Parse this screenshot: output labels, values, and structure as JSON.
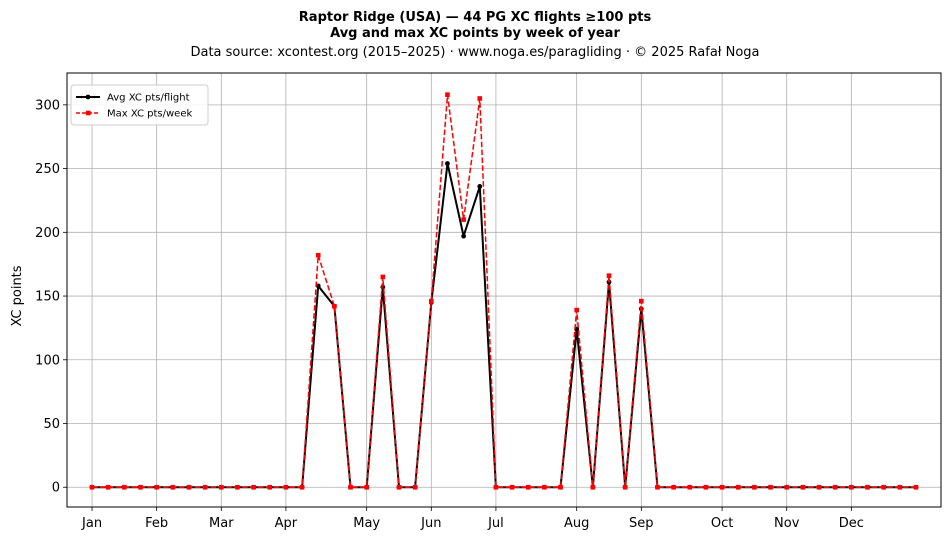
{
  "chart_data": {
    "type": "line",
    "title": "Raptor Ridge (USA)  —  44 PG XC flights ≥100 pts",
    "subtitle": "Avg and max XC points by week of year",
    "source": "Data source: xcontest.org (2015–2025)  ·  www.noga.es/paragliding  ·  © 2025 Rafał Noga",
    "xlabel": "",
    "ylabel": "XC points",
    "xlim": [
      -0.55,
      53.55
    ],
    "ylim": [
      -15.5,
      325
    ],
    "grid": true,
    "legend_position": "top-left",
    "x": [
      1,
      2,
      3,
      4,
      5,
      6,
      7,
      8,
      9,
      10,
      11,
      12,
      13,
      14,
      15,
      16,
      17,
      18,
      19,
      20,
      21,
      22,
      23,
      24,
      25,
      26,
      27,
      28,
      29,
      30,
      31,
      32,
      33,
      34,
      35,
      36,
      37,
      38,
      39,
      40,
      41,
      42,
      43,
      44,
      45,
      46,
      47,
      48,
      49,
      50,
      51,
      52
    ],
    "x_ticks": [
      {
        "label": "Jan",
        "value": 1
      },
      {
        "label": "Feb",
        "value": 5
      },
      {
        "label": "Mar",
        "value": 9
      },
      {
        "label": "Apr",
        "value": 13
      },
      {
        "label": "May",
        "value": 18
      },
      {
        "label": "Jun",
        "value": 22
      },
      {
        "label": "Jul",
        "value": 26
      },
      {
        "label": "Aug",
        "value": 31
      },
      {
        "label": "Sep",
        "value": 35
      },
      {
        "label": "Oct",
        "value": 40
      },
      {
        "label": "Nov",
        "value": 44
      },
      {
        "label": "Dec",
        "value": 48
      }
    ],
    "y_ticks": [
      0,
      50,
      100,
      150,
      200,
      250,
      300
    ],
    "series": [
      {
        "name": "Avg XC pts/flight",
        "color": "#000000",
        "line_style": "solid",
        "marker": "circle",
        "values": [
          0,
          0,
          0,
          0,
          0,
          0,
          0,
          0,
          0,
          0,
          0,
          0,
          0,
          0,
          158,
          142,
          0,
          0,
          157,
          0,
          0,
          145,
          254,
          197,
          236,
          0,
          0,
          0,
          0,
          0,
          124,
          0,
          161,
          0,
          140,
          0,
          0,
          0,
          0,
          0,
          0,
          0,
          0,
          0,
          0,
          0,
          0,
          0,
          0,
          0,
          0,
          0
        ]
      },
      {
        "name": "Max XC pts/week",
        "color": "#ff0000",
        "line_style": "dashed",
        "marker": "square",
        "values": [
          0,
          0,
          0,
          0,
          0,
          0,
          0,
          0,
          0,
          0,
          0,
          0,
          0,
          0,
          182,
          142,
          0,
          0,
          165,
          0,
          0,
          146,
          308,
          210,
          305,
          0,
          0,
          0,
          0,
          0,
          139,
          0,
          166,
          0,
          146,
          0,
          0,
          0,
          0,
          0,
          0,
          0,
          0,
          0,
          0,
          0,
          0,
          0,
          0,
          0,
          0,
          0
        ]
      }
    ]
  }
}
